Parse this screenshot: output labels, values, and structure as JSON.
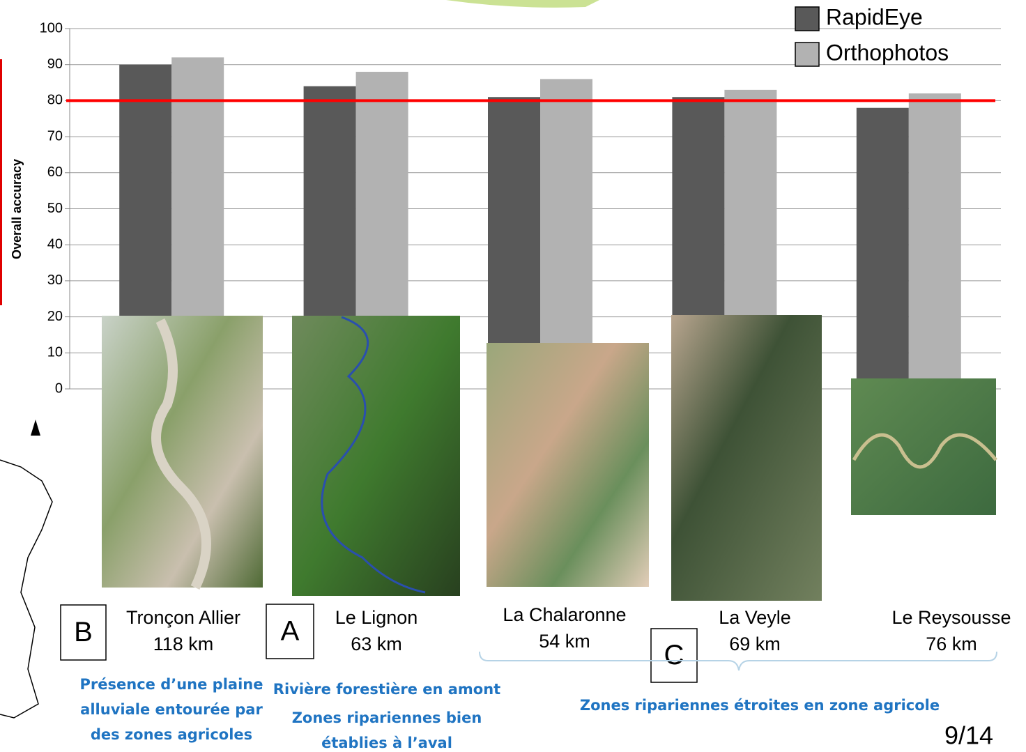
{
  "chart_data": {
    "type": "bar",
    "y_label": "Overall accuracy",
    "categories": [
      "Tronçon Allier",
      "Le Lignon",
      "La Chalaronne",
      "La  Veyle",
      "Le Reysousse"
    ],
    "category_sublabels": [
      "118 km",
      "63 km",
      "54 km",
      "69 km",
      "76 km"
    ],
    "series": [
      {
        "name": "RapidEye",
        "color": "#595959",
        "values": [
          90,
          84,
          81,
          81,
          78
        ]
      },
      {
        "name": "Orthophotos",
        "color": "#b2b2b2",
        "values": [
          92,
          88,
          86,
          83,
          82
        ]
      }
    ],
    "ylim": [
      0,
      100
    ],
    "yticks": [
      0,
      10,
      20,
      30,
      40,
      50,
      60,
      70,
      80,
      90,
      100
    ],
    "grid": true,
    "reference_line": {
      "value": 80,
      "color": "#ff0000"
    },
    "legend": "top-right",
    "group_letters": [
      "B",
      "A",
      "C"
    ],
    "notes": [
      [
        "Présence d’une plaine",
        "alluviale entourée par",
        "des zones agricoles"
      ],
      [
        "Rivière forestière en amont"
      ],
      [
        "Zones ripariennes bien",
        "établies à l’aval"
      ],
      [
        "Zones ripariennes étroites en zone agricole"
      ]
    ],
    "page_number": "9/14"
  }
}
